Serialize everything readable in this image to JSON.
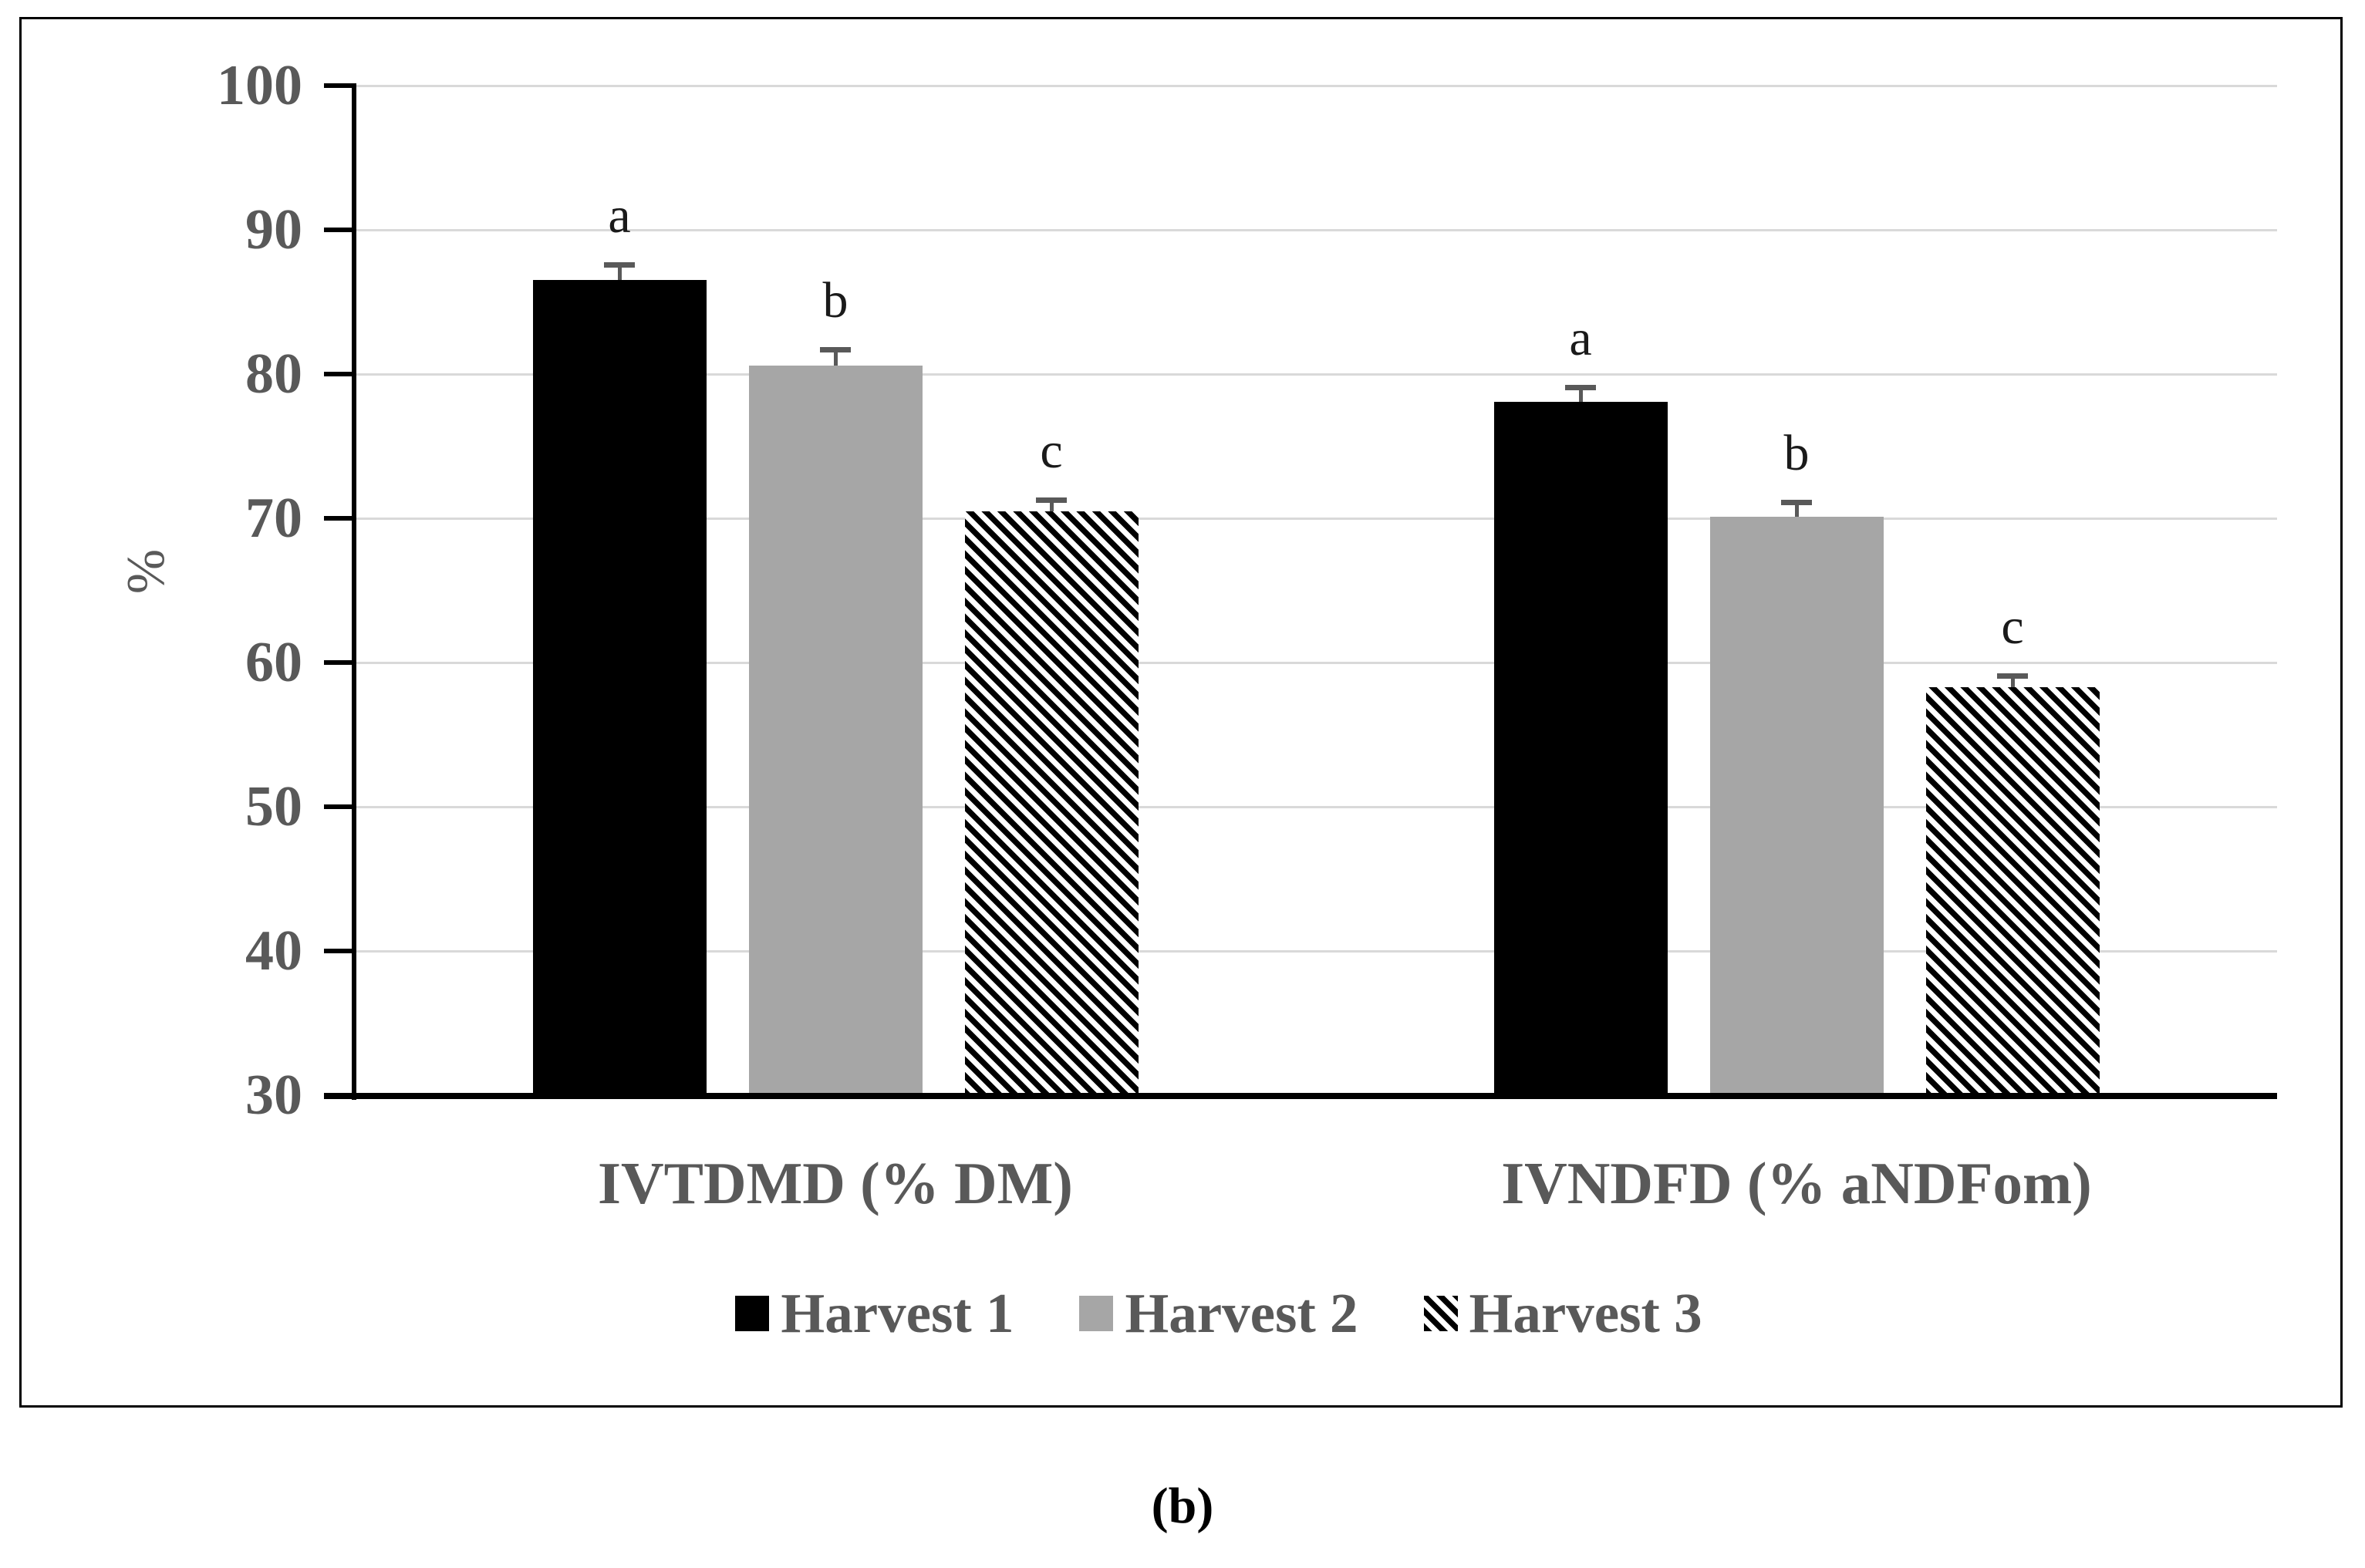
{
  "figure": {
    "caption": "(b)",
    "colors": {
      "bar_black": "#000000",
      "bar_gray": "#a6a6a6",
      "gridline": "#d9d9d9",
      "axis_line": "#000000",
      "text": "#595959",
      "error_bar": "#595959",
      "letter": "#1a1a1a",
      "caption": "#000000"
    }
  },
  "chart_data": {
    "type": "bar",
    "title": "",
    "xlabel": "",
    "ylabel": "%",
    "ylim": [
      30,
      100
    ],
    "yticks": [
      30,
      40,
      50,
      60,
      70,
      80,
      90,
      100
    ],
    "grid": "horizontal",
    "legend_position": "bottom",
    "categories": [
      "IVTDMD (% DM)",
      "IVNDFD (% aNDFom)"
    ],
    "series": [
      {
        "name": "Harvest 1",
        "style": "solid-black",
        "values": [
          86.5,
          78.1
        ],
        "errors_plus": [
          1.1,
          1.0
        ],
        "letters": [
          "a",
          "a"
        ]
      },
      {
        "name": "Harvest 2",
        "style": "solid-gray",
        "values": [
          80.6,
          70.1
        ],
        "errors_plus": [
          1.1,
          1.0
        ],
        "letters": [
          "b",
          "b"
        ]
      },
      {
        "name": "Harvest 3",
        "style": "hatched-diagonal",
        "values": [
          70.5,
          58.3
        ],
        "errors_plus": [
          0.8,
          0.8
        ],
        "letters": [
          "c",
          "c"
        ]
      }
    ]
  }
}
